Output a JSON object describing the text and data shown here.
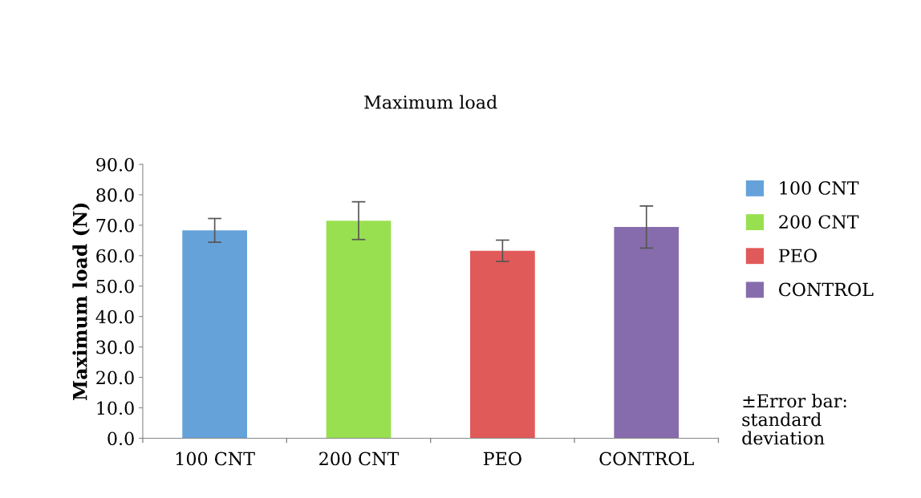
{
  "chart_data": {
    "type": "bar",
    "title": "Maximum load",
    "ylabel": "Maximum load (N)",
    "categories": [
      "100 CNT",
      "200 CNT",
      "PEO",
      "CONTROL"
    ],
    "series": [
      {
        "name": "100 CNT",
        "color": "#66a2da",
        "values": [
          68.3,
          null,
          null,
          null
        ],
        "errors": [
          3.9,
          null,
          null,
          null
        ]
      },
      {
        "name": "200 CNT",
        "color": "#98e050",
        "values": [
          null,
          71.5,
          null,
          null
        ],
        "errors": [
          null,
          6.2,
          null,
          null
        ]
      },
      {
        "name": "PEO",
        "color": "#e05a5a",
        "values": [
          null,
          null,
          61.6,
          null
        ],
        "errors": [
          null,
          null,
          3.5,
          null
        ]
      },
      {
        "name": "CONTROL",
        "color": "#866cac",
        "values": [
          null,
          null,
          null,
          69.4
        ],
        "errors": [
          null,
          null,
          null,
          6.9
        ]
      }
    ],
    "ylim": [
      0,
      90
    ],
    "yticks": [
      {
        "value": 0,
        "label": "0.0"
      },
      {
        "value": 10,
        "label": "10.0"
      },
      {
        "value": 20,
        "label": "20.0"
      },
      {
        "value": 30,
        "label": "30.0"
      },
      {
        "value": 40,
        "label": "40.0"
      },
      {
        "value": 50,
        "label": "50.0"
      },
      {
        "value": 60,
        "label": "60.0"
      },
      {
        "value": 70,
        "label": "70.0"
      },
      {
        "value": 80,
        "label": "80.0"
      },
      {
        "value": 90,
        "label": "90.0"
      }
    ],
    "legend": "right",
    "grid": false,
    "annotations": [
      "±Error bar:\nstandard\ndeviation"
    ]
  }
}
